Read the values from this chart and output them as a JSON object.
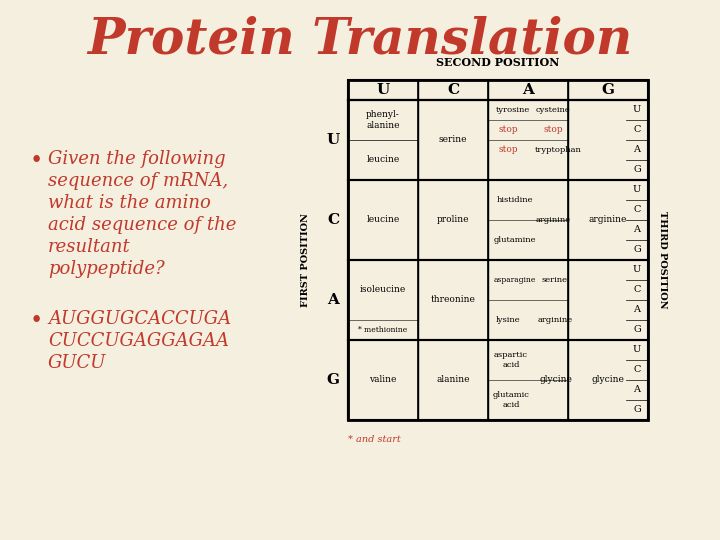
{
  "title": "Protein Translation",
  "title_color": "#C0392B",
  "title_fontsize": 36,
  "bg_color": "#F5EFE0",
  "bullet_color": "#C0392B",
  "bullet_text_lines": [
    "Given the following",
    "sequence of mRNA,",
    "what is the amino",
    "acid sequence of the",
    "resultant",
    "polypeptide?"
  ],
  "bullet2_lines": [
    "AUGGUGCACCUGA",
    "CUCCUGAGGAGAA",
    "GUCU"
  ],
  "table_header": "SECOND POSITION",
  "col_headers": [
    "U",
    "C",
    "A",
    "G"
  ],
  "row_headers": [
    "U",
    "C",
    "A",
    "G"
  ],
  "third_position_label": "THIRD POSITION",
  "first_position_label": "FIRST POSITION",
  "third_pos_cols": [
    "U",
    "C",
    "A",
    "G",
    "U",
    "C",
    "A",
    "G",
    "U",
    "C",
    "A",
    "G",
    "U",
    "C",
    "A",
    "G"
  ],
  "table_data": {
    "UU": {
      "col": "U",
      "row": "U",
      "amino": "phenyl-\nalanine"
    },
    "CU": {
      "col": "U",
      "row": "U",
      "amino": "leucine"
    },
    "UA": {
      "col": "A",
      "row": "U",
      "amino": "tyrosine",
      "extra": "cysteine"
    },
    "UA_stop1": {
      "col": "A",
      "row": "U",
      "amino": "stop",
      "extra": "stop",
      "color": "#C0392B"
    },
    "UA_stop2": {
      "col": "A",
      "row": "U",
      "amino": "stop",
      "extra": "tryptophan"
    },
    "UG": {
      "col": "G",
      "row": "U",
      "amino": "serine"
    },
    "CU2": {
      "col": "U",
      "row": "C",
      "amino": "leucine"
    },
    "CC": {
      "col": "C",
      "row": "C",
      "amino": "proline"
    },
    "CA": {
      "col": "A",
      "row": "C",
      "amino": "histidine",
      "extra": "arginine"
    },
    "CA2": {
      "col": "A",
      "row": "C",
      "amino": "glutamine"
    },
    "AU": {
      "col": "U",
      "row": "A",
      "amino": "isoleucine"
    },
    "AU2": {
      "col": "U",
      "row": "A",
      "amino": "* methionine"
    },
    "AC": {
      "col": "C",
      "row": "A",
      "amino": "threonine"
    },
    "AA": {
      "col": "A",
      "row": "A",
      "amino": "asparagine",
      "extra": "serine"
    },
    "AA2": {
      "col": "A",
      "row": "A",
      "amino": "lysine",
      "extra": "arginine"
    },
    "GU": {
      "col": "U",
      "row": "G",
      "amino": "valine"
    },
    "GC": {
      "col": "C",
      "row": "G",
      "amino": "alanine"
    },
    "GA": {
      "col": "A",
      "row": "G",
      "amino": "aspartic\nacid",
      "extra": "glycine"
    },
    "GA2": {
      "col": "A",
      "row": "G",
      "amino": "glutamic\nacid"
    },
    "GG": {
      "col": "G",
      "row": "G",
      "amino": "glycine"
    }
  },
  "footnote": "* and start",
  "footnote_color": "#C0392B"
}
